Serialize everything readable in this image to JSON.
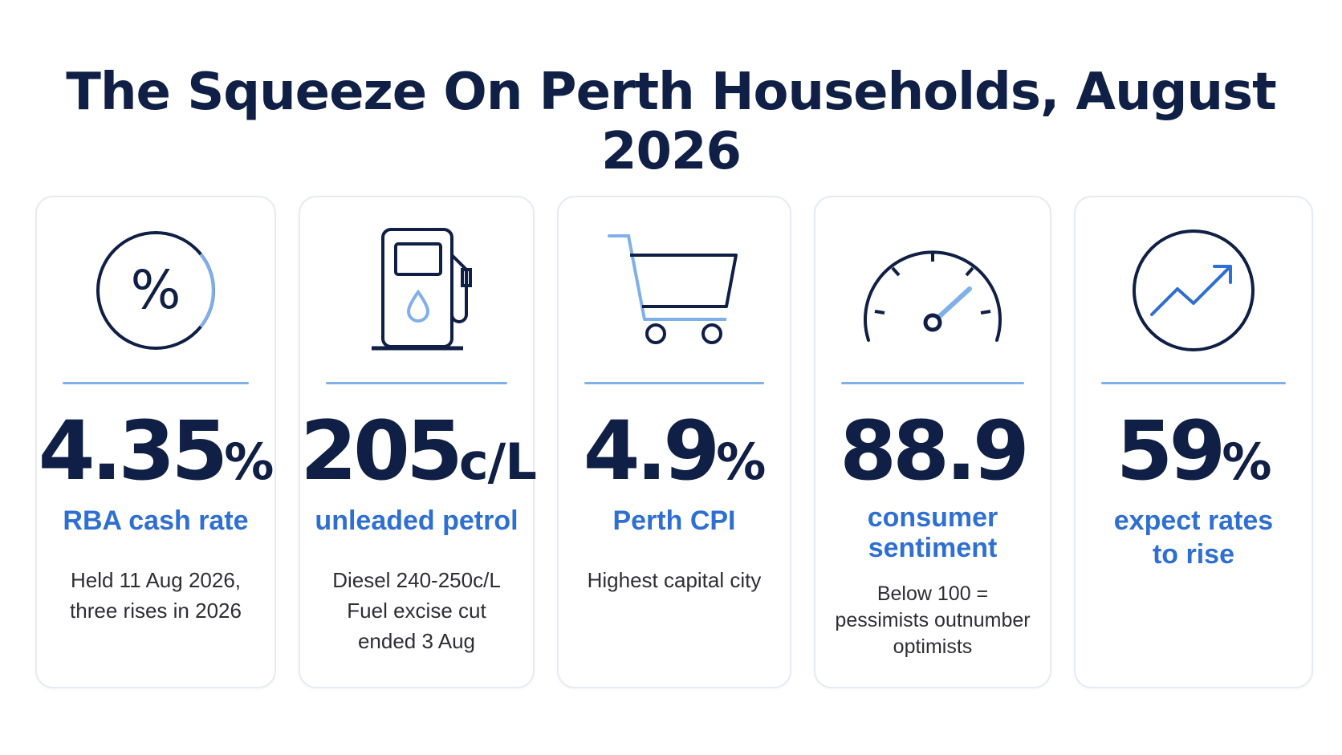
{
  "title": "The Squeeze On Perth Households, August 2026",
  "colors": {
    "navy": "#0f1f45",
    "accent_blue": "#2f6fd1",
    "light_blue": "#7fb0ea"
  },
  "cards": [
    {
      "icon": "percent-circle-icon",
      "value": "4.35",
      "unit": "%",
      "label": [
        "RBA cash rate"
      ],
      "note": [
        "Held 11 Aug 2026,",
        "three rises in 2026"
      ]
    },
    {
      "icon": "fuel-pump-icon",
      "value": "205",
      "unit": "c/L",
      "label": [
        "unleaded petrol"
      ],
      "note": [
        "Diesel 240-250c/L",
        "Fuel excise cut",
        "ended 3 Aug"
      ]
    },
    {
      "icon": "shopping-cart-icon",
      "value": "4.9",
      "unit": "%",
      "label": [
        "Perth CPI"
      ],
      "note": [
        "Highest capital city"
      ]
    },
    {
      "icon": "speedometer-gauge-icon",
      "value": "88.9",
      "unit": "",
      "label": [
        "consumer",
        "sentiment"
      ],
      "note": [
        "Below 100 =",
        "pessimists outnumber",
        "optimists"
      ]
    },
    {
      "icon": "trend-up-circle-icon",
      "value": "59",
      "unit": "%",
      "label": [
        "expect rates",
        "to rise"
      ],
      "note": []
    }
  ]
}
